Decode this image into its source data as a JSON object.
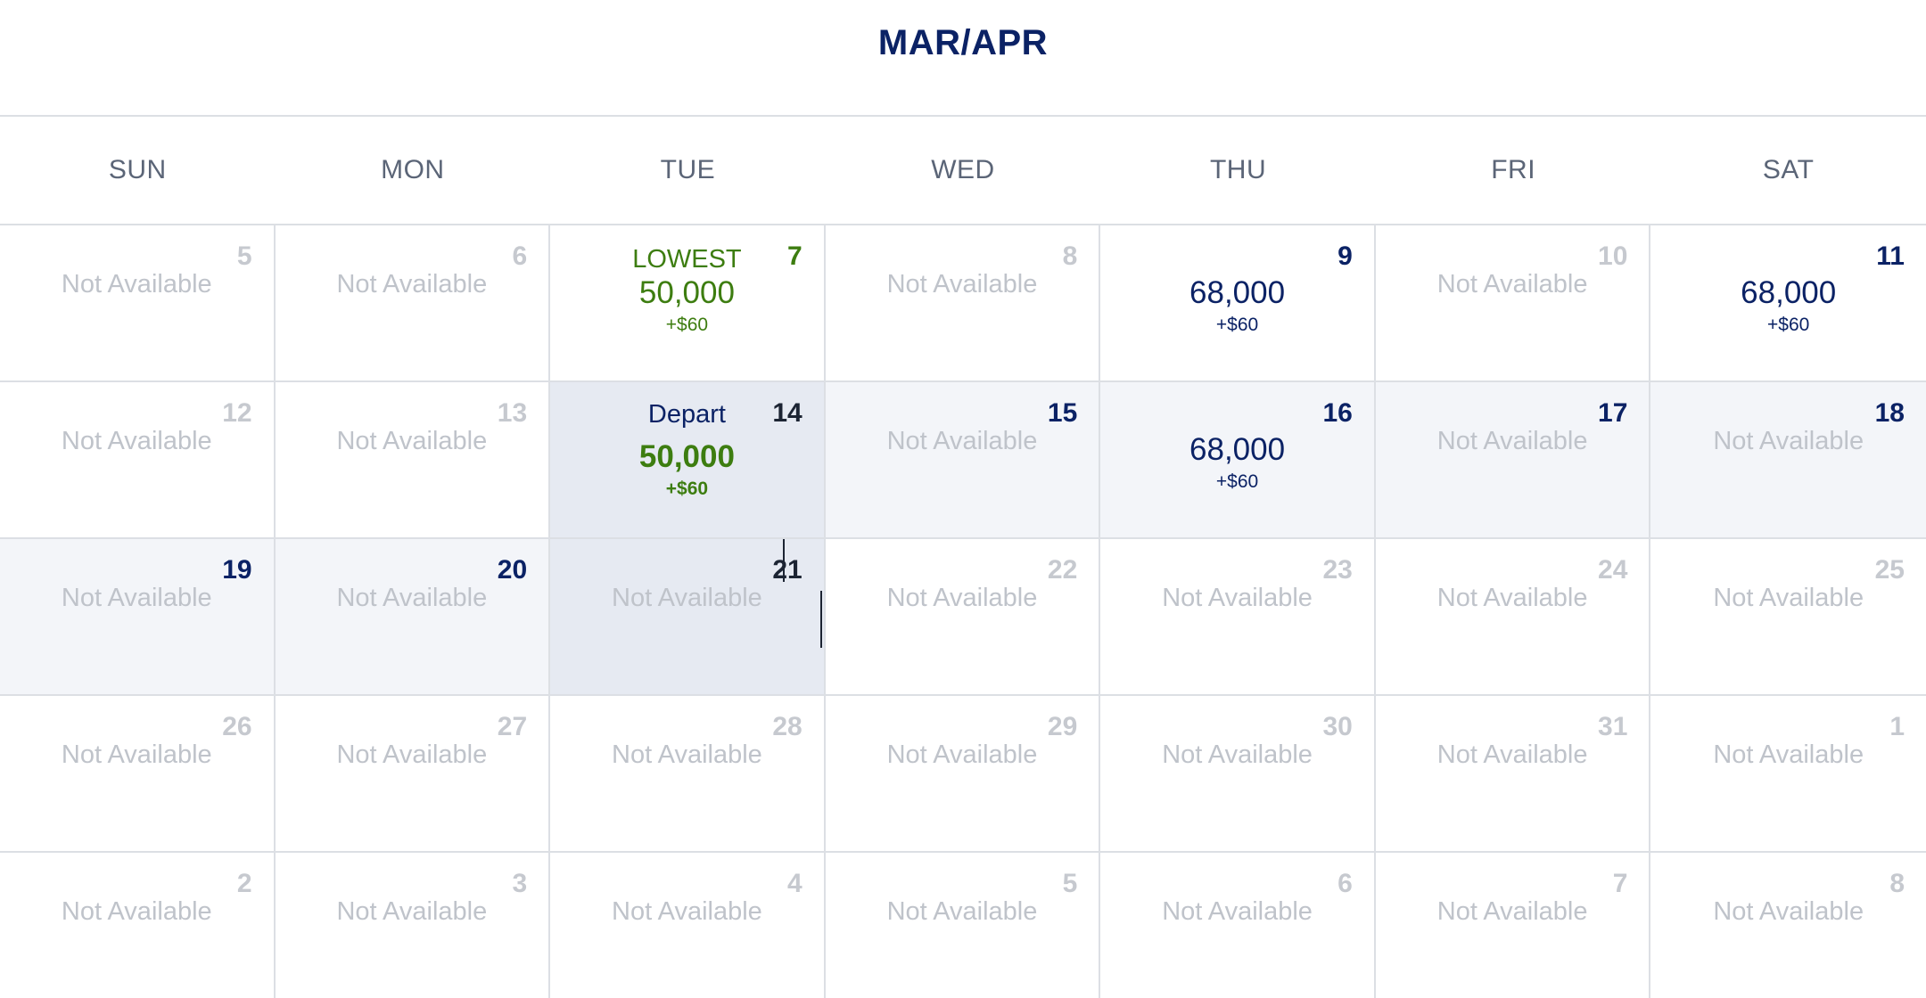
{
  "calendar": {
    "month_title": "MAR/APR",
    "weekdays": [
      "SUN",
      "MON",
      "TUE",
      "WED",
      "THU",
      "FRI",
      "SAT"
    ],
    "days": [
      {
        "day": "5",
        "status": "Not Available"
      },
      {
        "day": "6",
        "status": "Not Available"
      },
      {
        "day": "7",
        "tag": "LOWEST",
        "points": "50,000",
        "fee": "+$60",
        "state": "lowest"
      },
      {
        "day": "8",
        "status": "Not Available"
      },
      {
        "day": "9",
        "points": "68,000",
        "fee": "+$60",
        "state": "available"
      },
      {
        "day": "10",
        "status": "Not Available"
      },
      {
        "day": "11",
        "points": "68,000",
        "fee": "+$60",
        "state": "available"
      },
      {
        "day": "12",
        "status": "Not Available"
      },
      {
        "day": "13",
        "status": "Not Available"
      },
      {
        "day": "14",
        "tag": "Depart",
        "points": "50,000",
        "fee": "+$60",
        "state": "selected"
      },
      {
        "day": "15",
        "status": "Not Available",
        "state": "in-range-available"
      },
      {
        "day": "16",
        "points": "68,000",
        "fee": "+$60",
        "state": "in-range-available"
      },
      {
        "day": "17",
        "status": "Not Available",
        "state": "in-range-available"
      },
      {
        "day": "18",
        "status": "Not Available",
        "state": "in-range-available"
      },
      {
        "day": "19",
        "status": "Not Available",
        "state": "in-range-available"
      },
      {
        "day": "20",
        "status": "Not Available",
        "state": "in-range-available"
      },
      {
        "day": "21",
        "status": "Not Available",
        "state": "hover"
      },
      {
        "day": "22",
        "status": "Not Available"
      },
      {
        "day": "23",
        "status": "Not Available"
      },
      {
        "day": "24",
        "status": "Not Available"
      },
      {
        "day": "25",
        "status": "Not Available"
      },
      {
        "day": "26",
        "status": "Not Available"
      },
      {
        "day": "27",
        "status": "Not Available"
      },
      {
        "day": "28",
        "status": "Not Available"
      },
      {
        "day": "29",
        "status": "Not Available"
      },
      {
        "day": "30",
        "status": "Not Available"
      },
      {
        "day": "31",
        "status": "Not Available"
      },
      {
        "day": "1",
        "status": "Not Available"
      },
      {
        "day": "2",
        "status": "Not Available"
      },
      {
        "day": "3",
        "status": "Not Available"
      },
      {
        "day": "4",
        "status": "Not Available"
      },
      {
        "day": "5",
        "status": "Not Available"
      },
      {
        "day": "6",
        "status": "Not Available"
      },
      {
        "day": "7",
        "status": "Not Available"
      },
      {
        "day": "8",
        "status": "Not Available"
      }
    ]
  },
  "colors": {
    "brand_navy": "#0b2265",
    "lowest_green": "#3d7d10",
    "unavailable_gray": "#bfc3ca",
    "range_bg": "#f3f5f9",
    "selected_bg": "#e6eaf2",
    "grid_line": "#dcdfe4"
  }
}
